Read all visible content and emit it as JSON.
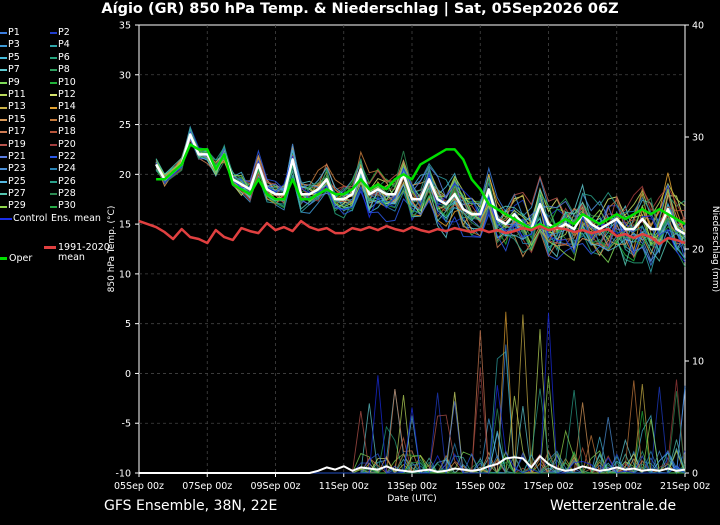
{
  "chart_data": {
    "type": "line",
    "title": "Aígio  (GR)  850 hPa Temp. & Niederschlag | Sat, 05Sep2026 06Z",
    "xlabel": "Date (UTC)",
    "ylabel": "850 hPa Temp. (°C)",
    "y2label": "Niederschlag (mm)",
    "ylim": [
      -10,
      35
    ],
    "y2lim": [
      0,
      40
    ],
    "yticks": [
      "35",
      "30",
      "25",
      "20",
      "15",
      "10",
      "5",
      "0",
      "-5",
      "-10"
    ],
    "y2ticks": [
      "40",
      "30",
      "20",
      "10",
      "0"
    ],
    "xticks": [
      "05Sep 00z",
      "07Sep 00z",
      "09Sep 00z",
      "11Sep 00z",
      "13Sep 00z",
      "15Sep 00z",
      "17Sep 00z",
      "19Sep 00z",
      "21Sep 00z"
    ],
    "x_range_hours": [
      0,
      384
    ],
    "grid": true,
    "background": "#000000",
    "series": [
      {
        "name": "Ens. mean",
        "color": "#ffffff",
        "width": 2.5,
        "x": [
          12,
          18,
          30,
          36,
          42,
          48,
          54,
          60,
          66,
          72,
          78,
          84,
          90,
          96,
          102,
          108,
          114,
          120,
          126,
          132,
          138,
          144,
          150,
          156,
          162,
          168,
          174,
          180,
          186,
          192,
          198,
          204,
          210,
          216,
          222,
          228,
          234,
          240,
          246,
          252,
          258,
          264,
          270,
          276,
          282,
          288,
          294,
          300,
          306,
          312,
          318,
          324,
          330,
          336,
          342,
          348,
          354,
          360,
          366,
          372,
          378,
          384
        ],
        "y": [
          21,
          19.5,
          21,
          24,
          22,
          22,
          20.5,
          22,
          19.5,
          19,
          18.5,
          21,
          18.5,
          18,
          18,
          21.5,
          18,
          18,
          18.5,
          19.5,
          17.5,
          17.5,
          18,
          20.5,
          18,
          18.5,
          18,
          18,
          20,
          17.5,
          17.5,
          19.5,
          17.5,
          17,
          18,
          16.5,
          16,
          16,
          18.5,
          15.5,
          15,
          16,
          15,
          14.5,
          17,
          15,
          14.5,
          15,
          14.5,
          16,
          15,
          14.5,
          15,
          15.5,
          14.5,
          14.5,
          15.5,
          14.5,
          14.5,
          16.5,
          14.5,
          14
        ]
      },
      {
        "name": "Oper",
        "color": "#00e000",
        "width": 2.5,
        "x": [
          12,
          18,
          30,
          36,
          42,
          48,
          54,
          60,
          66,
          72,
          78,
          84,
          90,
          96,
          102,
          108,
          114,
          120,
          126,
          132,
          138,
          144,
          150,
          156,
          162,
          168,
          174,
          180,
          186,
          192,
          198,
          204,
          210,
          216,
          222,
          228,
          234,
          240,
          246,
          252,
          258,
          264,
          270,
          276,
          282,
          288,
          294,
          300,
          306,
          312,
          318,
          324,
          330,
          336,
          342,
          348,
          354,
          360,
          366,
          372,
          378,
          384
        ],
        "y": [
          19.5,
          19.5,
          21,
          23,
          22.5,
          22.5,
          20.5,
          22,
          19,
          18.5,
          18,
          19.5,
          18,
          17.5,
          17.5,
          19.5,
          17.5,
          17.5,
          18,
          18.5,
          18,
          18,
          18.5,
          19.5,
          18.5,
          19,
          18.5,
          19.5,
          20,
          19.5,
          21,
          21.5,
          22,
          22.5,
          22.5,
          21.5,
          19.5,
          18.5,
          17,
          16.5,
          16,
          15.5,
          15,
          14.5,
          15,
          14.5,
          15,
          15.5,
          15,
          16,
          15.5,
          15,
          15.5,
          16,
          15.5,
          16,
          16.5,
          16,
          16.5,
          16,
          15.5,
          15
        ]
      },
      {
        "name": "1991-2020 mean",
        "color": "#e04040",
        "width": 2.5,
        "x": [
          0,
          12,
          18,
          24,
          30,
          36,
          42,
          48,
          54,
          60,
          66,
          72,
          78,
          84,
          90,
          96,
          102,
          108,
          114,
          120,
          126,
          132,
          138,
          144,
          150,
          156,
          162,
          168,
          174,
          180,
          186,
          192,
          198,
          204,
          210,
          216,
          222,
          228,
          234,
          240,
          246,
          252,
          258,
          264,
          270,
          276,
          282,
          288,
          294,
          300,
          306,
          312,
          318,
          324,
          330,
          336,
          342,
          348,
          354,
          360,
          366,
          372,
          378,
          384
        ],
        "y": [
          15.3,
          14.7,
          14.2,
          13.5,
          14.5,
          13.7,
          13.5,
          13.1,
          14.4,
          13.7,
          13.4,
          14.6,
          14.3,
          14.1,
          15.1,
          14.4,
          14.7,
          14.3,
          15.3,
          14.7,
          14.4,
          14.6,
          14.1,
          14.1,
          14.6,
          14.4,
          14.7,
          14.4,
          14.8,
          14.5,
          14.3,
          14.7,
          14.4,
          14.2,
          14.5,
          14.3,
          14.6,
          14.4,
          14.2,
          14.5,
          14.2,
          14.4,
          14.1,
          14.3,
          14.6,
          14.4,
          14.8,
          14.4,
          14.6,
          14.5,
          14.2,
          14.4,
          14.1,
          14.3,
          14.5,
          13.8,
          14.0,
          13.6,
          14.0,
          13.7,
          13.0,
          13.6,
          13.4,
          13.1
        ]
      },
      {
        "name": "Ens. mean precip (mm)",
        "axis": "y2",
        "color": "#ffffff",
        "width": 2,
        "x": [
          0,
          120,
          126,
          132,
          138,
          144,
          150,
          156,
          162,
          168,
          174,
          180,
          186,
          192,
          198,
          204,
          210,
          216,
          222,
          228,
          234,
          240,
          246,
          252,
          258,
          264,
          270,
          276,
          282,
          288,
          294,
          300,
          306,
          312,
          318,
          324,
          330,
          336,
          342,
          348,
          354,
          360,
          366,
          372,
          378,
          384
        ],
        "y": [
          0,
          0,
          0.2,
          0.5,
          0.3,
          0.6,
          0.2,
          0.5,
          0.4,
          0.3,
          0.6,
          0.3,
          0.2,
          0.1,
          0.2,
          0.3,
          0.1,
          0.2,
          0.4,
          0.3,
          0.2,
          0.3,
          0.6,
          0.8,
          1.3,
          1.4,
          1.3,
          0.5,
          1.5,
          0.8,
          0.4,
          0.2,
          0.3,
          0.6,
          0.4,
          0.2,
          0.3,
          0.5,
          0.3,
          0.4,
          0.2,
          0.3,
          0.2,
          0.4,
          0.2,
          0.3
        ]
      }
    ],
    "legend": {
      "placement": "left",
      "items": [
        {
          "label": "P1",
          "color": "#3b7ddd"
        },
        {
          "label": "P2",
          "color": "#1f3dcc"
        },
        {
          "label": "P3",
          "color": "#3e9ad6"
        },
        {
          "label": "P4",
          "color": "#2fa5a8"
        },
        {
          "label": "P5",
          "color": "#45b9d8"
        },
        {
          "label": "P6",
          "color": "#26a37c"
        },
        {
          "label": "P7",
          "color": "#5fcad0"
        },
        {
          "label": "P8",
          "color": "#2e9e5e"
        },
        {
          "label": "P9",
          "color": "#7ed957"
        },
        {
          "label": "P10",
          "color": "#21b33a"
        },
        {
          "label": "P11",
          "color": "#b9d85a"
        },
        {
          "label": "P12",
          "color": "#d6e36c"
        },
        {
          "label": "P13",
          "color": "#c9b046"
        },
        {
          "label": "P14",
          "color": "#e0a030"
        },
        {
          "label": "P15",
          "color": "#d99a59"
        },
        {
          "label": "P16",
          "color": "#c47a3c"
        },
        {
          "label": "P17",
          "color": "#cf7b53"
        },
        {
          "label": "P18",
          "color": "#b8553a"
        },
        {
          "label": "P19",
          "color": "#b8544c"
        },
        {
          "label": "P20",
          "color": "#a23d3d"
        },
        {
          "label": "P21",
          "color": "#5a7ce0"
        },
        {
          "label": "P22",
          "color": "#2b58e6"
        },
        {
          "label": "P23",
          "color": "#4b8fd8"
        },
        {
          "label": "P24",
          "color": "#2a83b5"
        },
        {
          "label": "P25",
          "color": "#55b7e0"
        },
        {
          "label": "P26",
          "color": "#2aa08a"
        },
        {
          "label": "P27",
          "color": "#54c4b0"
        },
        {
          "label": "P28",
          "color": "#2c8a52"
        },
        {
          "label": "P29",
          "color": "#8fd64d"
        },
        {
          "label": "P30",
          "color": "#27a845"
        },
        {
          "label": "Control",
          "color": "#1a2ee8"
        },
        {
          "label": "Ens. mean",
          "color": "#ffffff"
        },
        {
          "label": "1991-2020\nmean",
          "color": "#e04040"
        },
        {
          "label": "Oper",
          "color": "#00e000"
        }
      ]
    }
  },
  "footer": {
    "left": "GFS Ensemble, 38N, 22E",
    "right": "Wetterzentrale.de"
  }
}
